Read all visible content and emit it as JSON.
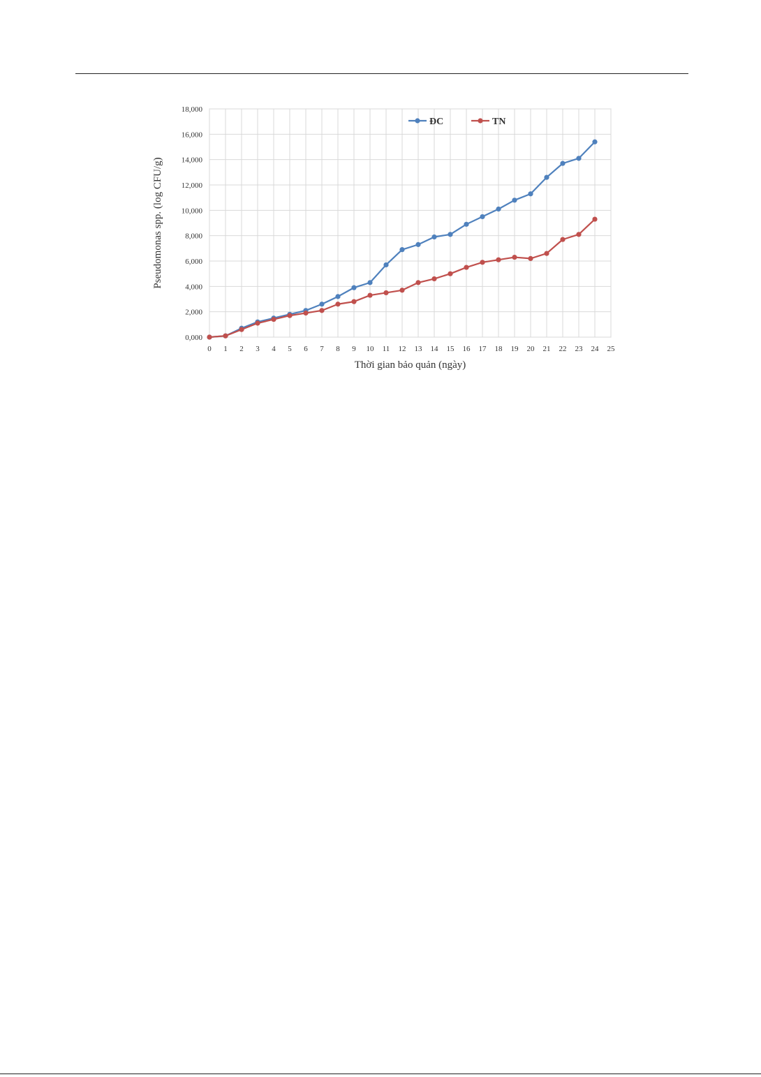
{
  "chart_data": {
    "type": "line",
    "title": "",
    "xlabel": "Thời gian bảo quản (ngày)",
    "ylabel": "Pseudomonas spp. (log CFU/g)",
    "x": [
      0,
      1,
      2,
      3,
      4,
      5,
      6,
      7,
      8,
      9,
      10,
      11,
      12,
      13,
      14,
      15,
      16,
      17,
      18,
      19,
      20,
      21,
      22,
      23,
      24
    ],
    "x_ticks": [
      "0",
      "1",
      "2",
      "3",
      "4",
      "5",
      "6",
      "7",
      "8",
      "9",
      "10",
      "11",
      "12",
      "13",
      "14",
      "15",
      "16",
      "17",
      "18",
      "19",
      "20",
      "21",
      "22",
      "23",
      "24",
      "25"
    ],
    "xlim": [
      0,
      25
    ],
    "y_ticks": [
      "0,000",
      "2,000",
      "4,000",
      "6,000",
      "8,000",
      "10,000",
      "12,000",
      "14,000",
      "16,000",
      "18,000"
    ],
    "ylim": [
      0,
      18
    ],
    "grid": true,
    "legend_position": "top-right",
    "series": [
      {
        "name": "ĐC",
        "color": "#4f81bd",
        "values": [
          0.0,
          0.1,
          0.7,
          1.2,
          1.5,
          1.8,
          2.1,
          2.6,
          3.2,
          3.9,
          4.3,
          5.7,
          6.9,
          7.3,
          7.9,
          8.1,
          8.9,
          9.5,
          10.1,
          10.8,
          11.3,
          12.6,
          13.7,
          14.1,
          15.4
        ]
      },
      {
        "name": "TN",
        "color": "#c0504d",
        "values": [
          0.0,
          0.1,
          0.6,
          1.1,
          1.4,
          1.7,
          1.9,
          2.1,
          2.6,
          2.8,
          3.3,
          3.5,
          3.7,
          4.3,
          4.6,
          5.0,
          5.5,
          5.9,
          6.1,
          6.3,
          6.2,
          6.6,
          7.7,
          8.1,
          9.3
        ]
      }
    ]
  }
}
